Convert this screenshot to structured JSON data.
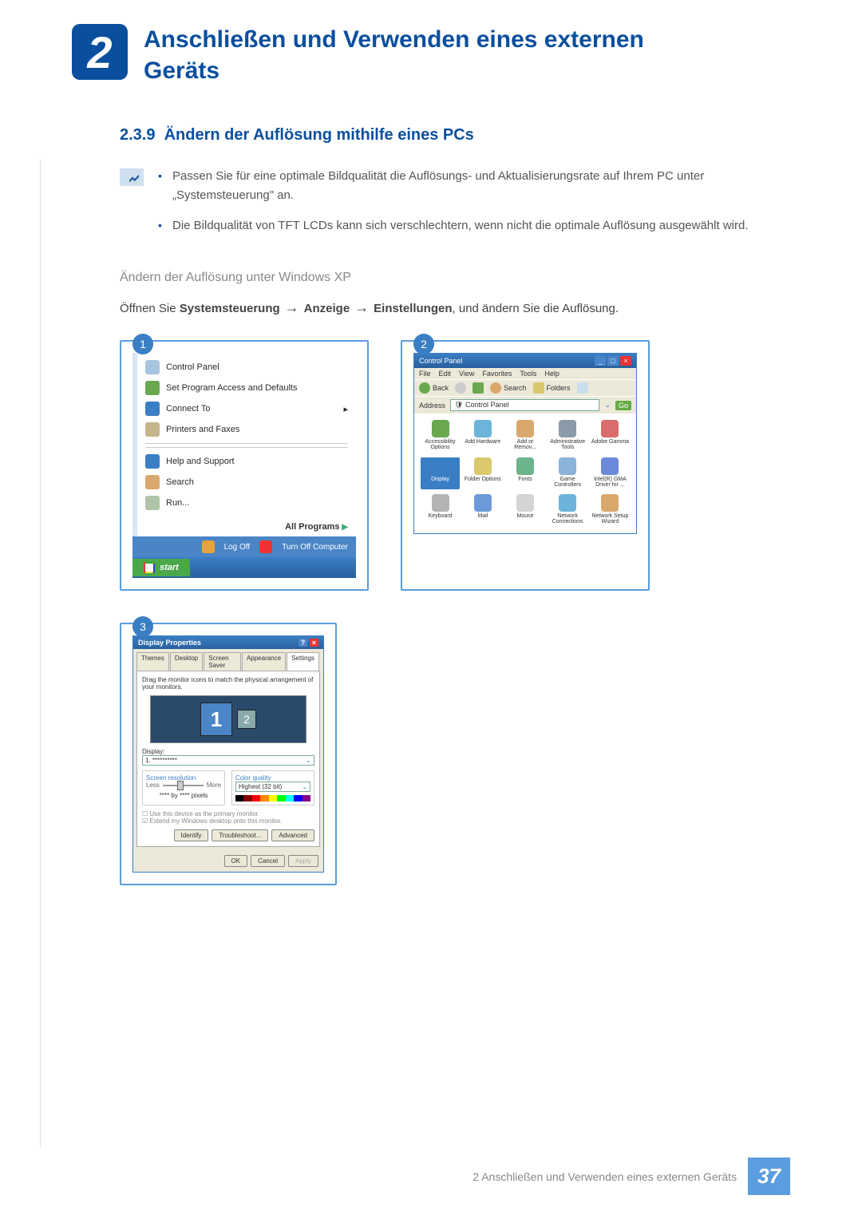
{
  "chapter": {
    "number": "2",
    "title": "Anschließen und Verwenden eines externen Geräts"
  },
  "section": {
    "number": "2.3.9",
    "title": "Ändern der Auflösung mithilfe eines PCs"
  },
  "notes": {
    "item1": "Passen Sie für eine optimale Bildqualität die Auflösungs- und Aktualisierungsrate auf Ihrem PC unter „Systemsteuerung\" an.",
    "item2": "Die Bildqualität von TFT LCDs kann sich verschlechtern, wenn nicht die optimale Auflösung ausgewählt wird."
  },
  "subheading": "Ändern der Auflösung unter Windows XP",
  "instruction": {
    "prefix": "Öffnen Sie ",
    "b1": "Systemsteuerung",
    "b2": "Anzeige",
    "b3": "Einstellungen",
    "suffix": ", und ändern Sie die Auflösung."
  },
  "steps": {
    "s1": "1",
    "s2": "2",
    "s3": "3"
  },
  "startmenu": {
    "items": [
      {
        "label": "Control Panel",
        "color": "#a8c4e0"
      },
      {
        "label": "Set Program Access and Defaults",
        "color": "#6aa84f"
      },
      {
        "label": "Connect To",
        "color": "#3a7ec4",
        "arrow": true
      },
      {
        "label": "Printers and Faxes",
        "color": "#c6b48a"
      },
      {
        "label": "Help and Support",
        "color": "#3a7ec4"
      },
      {
        "label": "Search",
        "color": "#d9a86c"
      },
      {
        "label": "Run...",
        "color": "#b0c4a8"
      }
    ],
    "allprograms": "All Programs",
    "logoff": "Log Off",
    "turnoff": "Turn Off Computer",
    "start": "start"
  },
  "controlpanel": {
    "title": "Control Panel",
    "menu": [
      "File",
      "Edit",
      "View",
      "Favorites",
      "Tools",
      "Help"
    ],
    "toolbar": {
      "back": "Back",
      "search": "Search",
      "folders": "Folders"
    },
    "address_label": "Address",
    "address_value": "Control Panel",
    "go": "Go",
    "icons": [
      {
        "label": "Accessibility Options",
        "color": "#6aa84f"
      },
      {
        "label": "Add Hardware",
        "color": "#6cb4d9"
      },
      {
        "label": "Add or Remov...",
        "color": "#d9a86c"
      },
      {
        "label": "Administrative Tools",
        "color": "#8a9aa8"
      },
      {
        "label": "Adobe Gamma",
        "color": "#d96c6c"
      },
      {
        "label": "Display",
        "color": "#3a7ec4",
        "highlight": true
      },
      {
        "label": "Folder Options",
        "color": "#d9c86c"
      },
      {
        "label": "Fonts",
        "color": "#6cb48a"
      },
      {
        "label": "Game Controllers",
        "color": "#8ab4d9"
      },
      {
        "label": "Intel(R) GMA Driver for ...",
        "color": "#6c8ad9"
      },
      {
        "label": "Keyboard",
        "color": "#b4b4b4"
      },
      {
        "label": "Mail",
        "color": "#6c9ad9"
      },
      {
        "label": "Mouse",
        "color": "#d4d4d4"
      },
      {
        "label": "Network Connections",
        "color": "#6cb4d9"
      },
      {
        "label": "Network Setup Wizard",
        "color": "#d9a86c"
      }
    ]
  },
  "displayprops": {
    "title": "Display Properties",
    "tabs": [
      "Themes",
      "Desktop",
      "Screen Saver",
      "Appearance",
      "Settings"
    ],
    "active_tab": 4,
    "hint": "Drag the monitor icons to match the physical arrangement of your monitors.",
    "mon1": "1",
    "mon2": "2",
    "display_label": "Display:",
    "display_value": "1. **********",
    "res_label": "Screen resolution",
    "res_less": "Less",
    "res_more": "More",
    "res_value": "**** by **** pixels",
    "quality_label": "Color quality",
    "quality_value": "Highest (32 bit)",
    "quality_colors": [
      "#000",
      "#800",
      "#f00",
      "#f80",
      "#ff0",
      "#0f0",
      "#0ff",
      "#00f",
      "#808"
    ],
    "check1": "Use this device as the primary monitor.",
    "check2": "Extend my Windows desktop onto this monitor.",
    "btn_identify": "Identify",
    "btn_trouble": "Troubleshoot...",
    "btn_advanced": "Advanced",
    "btn_ok": "OK",
    "btn_cancel": "Cancel",
    "btn_apply": "Apply"
  },
  "footer": {
    "text": "2 Anschließen und Verwenden eines externen Geräts",
    "page": "37"
  }
}
